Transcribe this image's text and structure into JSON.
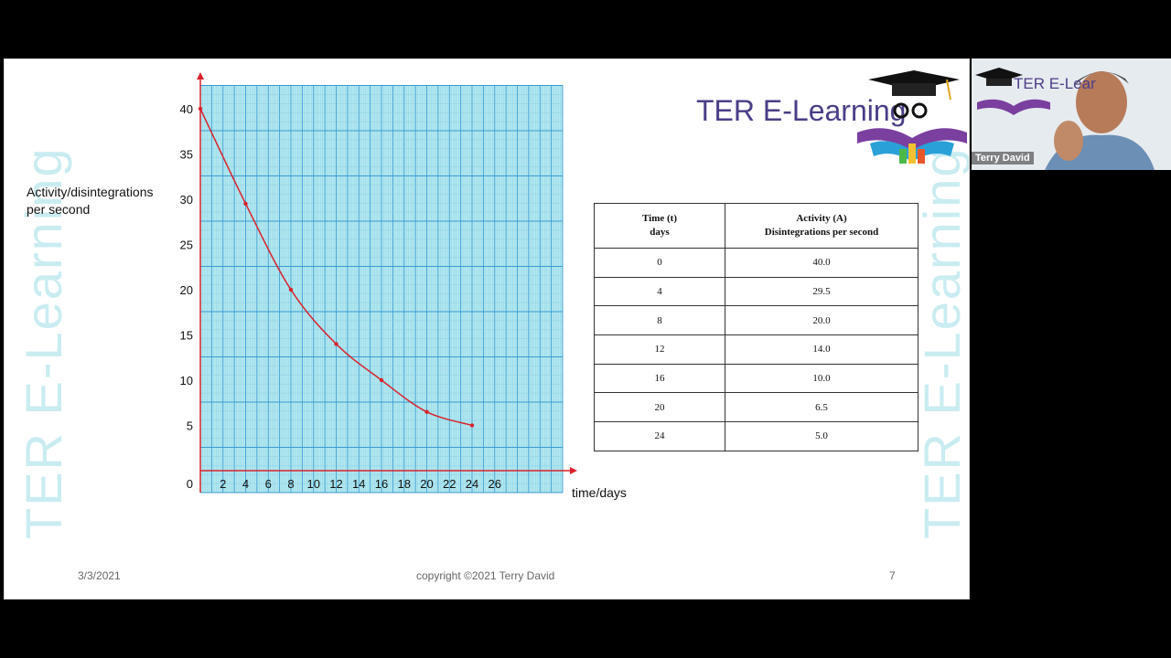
{
  "brand": {
    "logo_text": "TER E-Learning",
    "watermark": "TER E-Learning",
    "webcam_logo_text": "TER E-Lear"
  },
  "presenter": {
    "name": "Terry David"
  },
  "footer": {
    "date": "3/3/2021",
    "copyright": "copyright ©2021 Terry David",
    "page_number": "7"
  },
  "colors": {
    "grid_bg": "#b2e8f0",
    "grid_line": "#7ec8e0",
    "grid_major": "#3a9bd0",
    "curve": "#d9222a",
    "axis": "#d9222a",
    "logo_purple": "#4b3d87"
  },
  "chart_data": {
    "type": "line",
    "xlabel": "time/days",
    "ylabel": "Activity/disintegrations per second",
    "x_ticks": [
      "2",
      "4",
      "6",
      "8",
      "10",
      "12",
      "14",
      "16",
      "18",
      "20",
      "22",
      "24",
      "26"
    ],
    "y_ticks": [
      "40",
      "35",
      "30",
      "25",
      "20",
      "15",
      "10",
      "5"
    ],
    "origin_label": "0",
    "xlim": [
      0,
      32
    ],
    "ylim": [
      -2.5,
      43
    ],
    "grid": true,
    "series": [
      {
        "x": [
          0,
          4,
          8,
          12,
          16,
          20,
          24
        ],
        "y": [
          40.0,
          29.5,
          20.0,
          14.0,
          10.0,
          6.5,
          5.0
        ]
      }
    ],
    "table": {
      "headers": [
        {
          "line1": "Time (t)",
          "line2": "days"
        },
        {
          "line1": "Activity (A)",
          "line2": "Disintegrations per second"
        }
      ],
      "rows": [
        [
          "0",
          "40.0"
        ],
        [
          "4",
          "29.5"
        ],
        [
          "8",
          "20.0"
        ],
        [
          "12",
          "14.0"
        ],
        [
          "16",
          "10.0"
        ],
        [
          "20",
          "6.5"
        ],
        [
          "24",
          "5.0"
        ]
      ]
    }
  }
}
